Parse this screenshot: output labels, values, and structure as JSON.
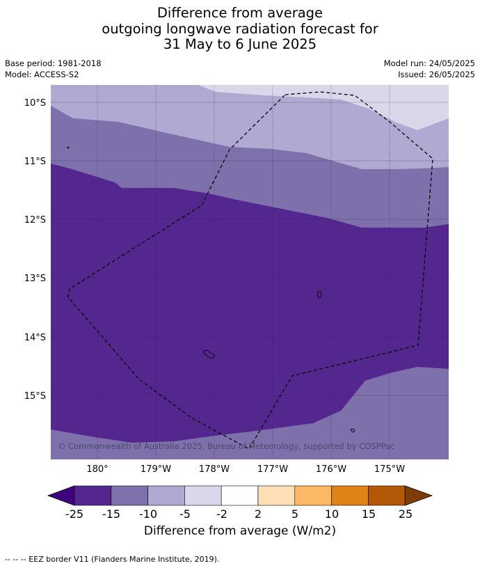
{
  "title": {
    "line1": "Difference from average",
    "line2": "outgoing longwave radiation forecast for",
    "line3": "31 May to 6 June 2025"
  },
  "meta": {
    "base_period": "Base period: 1981-2018",
    "model": "Model: ACCESS-S2",
    "model_run": "Model run: 24/05/2025",
    "issued": "Issued: 26/05/2025"
  },
  "map": {
    "copyright": "© Commonwealth of Australia 2025, Bureau of Meteorology, supported by COSPPac",
    "lat_labels": [
      "10°S",
      "11°S",
      "12°S",
      "13°S",
      "14°S",
      "15°S"
    ],
    "lon_labels": [
      "180°",
      "179°W",
      "178°W",
      "177°W",
      "176°W",
      "175°W"
    ],
    "fill_colors": {
      "c_m25_m15": "#54278f",
      "c_m15_m10": "#7d70ab",
      "c_m10_m5": "#b0a9d1",
      "c_m5_m2": "#d9d8ea"
    }
  },
  "colorbar": {
    "ticks": [
      "-25",
      "-15",
      "-10",
      "-5",
      "-2",
      "2",
      "5",
      "10",
      "15",
      "25"
    ],
    "colors": [
      "#3f007d",
      "#54278f",
      "#7d70ab",
      "#b0a9d1",
      "#d9d8ea",
      "#ffffff",
      "#fee0b6",
      "#fdb863",
      "#e08214",
      "#b35806",
      "#7f3b08"
    ],
    "label": "Difference from average (W/m2)"
  },
  "footer": {
    "eez_note": "--  --  -- EEZ border V11 (Flanders Marine Institute, 2019)."
  }
}
